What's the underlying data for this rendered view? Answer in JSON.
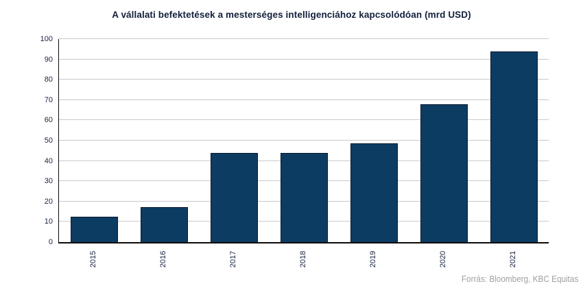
{
  "header": {
    "title": "A vállalati befektetések a mesterséges intelligenciához kapcsolódóan (mrd USD)"
  },
  "footer": {
    "source": "Forrás: Bloomberg,  KBC Equitas"
  },
  "chart_data": {
    "type": "bar",
    "title": "A vállalati befektetések a mesterséges intelligenciához kapcsolódóan (mrd USD)",
    "categories": [
      "2015",
      "2016",
      "2017",
      "2018",
      "2019",
      "2020",
      "2021"
    ],
    "values": [
      12.6,
      17.4,
      44.0,
      43.8,
      48.8,
      67.8,
      93.9
    ],
    "xlabel": "",
    "ylabel": "",
    "ylim": [
      0,
      100
    ],
    "yticks": [
      0,
      10,
      20,
      30,
      40,
      50,
      60,
      70,
      80,
      90,
      100
    ],
    "grid": true,
    "legend": false,
    "x_tick_label_rotation": 90
  },
  "colors": {
    "bar_fill": "#0d3c63",
    "bar_border": "#06192e",
    "title_text": "#121f3d",
    "axis_label_text": "#16233f",
    "gridline": "#c9c9c9",
    "axis_line": "#0a0a0a",
    "source_text": "#a0a0a0",
    "background": "#ffffff"
  }
}
